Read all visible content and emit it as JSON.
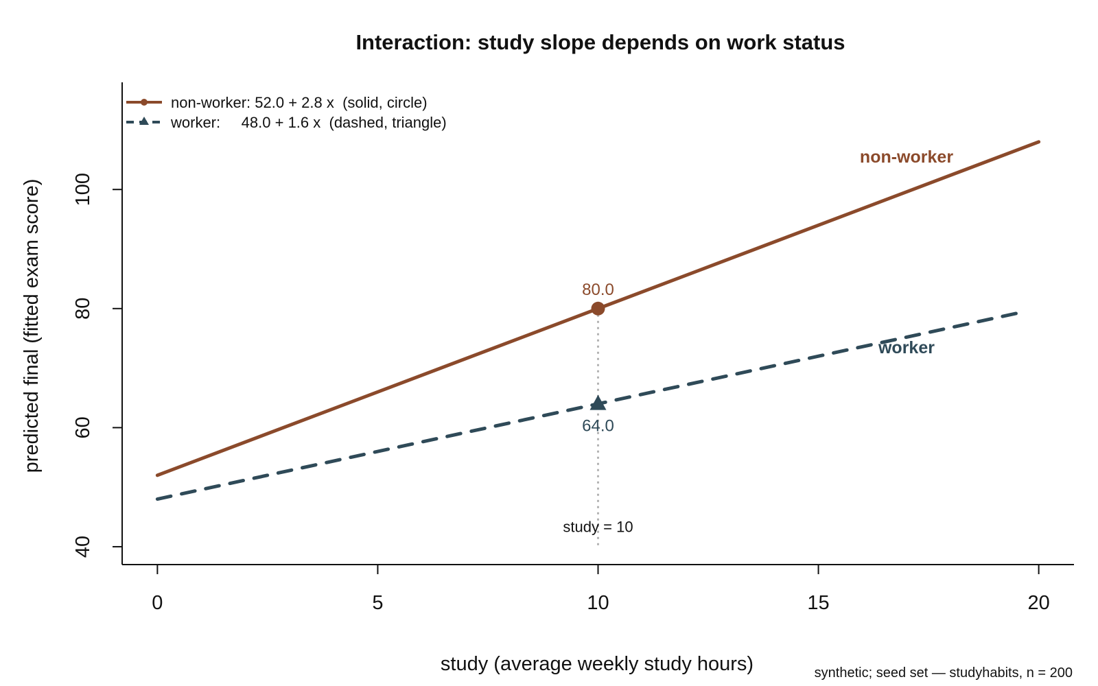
{
  "colors": {
    "non_worker": "#8b4a2b",
    "worker": "#2f4a58",
    "reference": "#b3b3b3",
    "axis": "#111111"
  },
  "chart_data": {
    "type": "line",
    "title": "Interaction: study slope depends on work status",
    "xlabel": "study (average weekly study hours)",
    "ylabel": "predicted final (fitted exam score)",
    "xlim": [
      -0.8,
      20.8
    ],
    "ylim": [
      37,
      118
    ],
    "x_ticks": [
      0,
      5,
      10,
      15,
      20
    ],
    "y_ticks": [
      40,
      60,
      80,
      100
    ],
    "grid": false,
    "legend_position": "top-left",
    "series": [
      {
        "name": "non-worker",
        "legend_label": "non-worker: 52.0 + 2.8 x  (solid, circle)",
        "line_style": "solid",
        "marker": "circle",
        "color": "#8b4a2b",
        "intercept": 52.0,
        "slope": 2.8,
        "x": [
          0,
          20
        ],
        "y": [
          52.0,
          108.0
        ]
      },
      {
        "name": "worker",
        "legend_label": "worker:     48.0 + 1.6 x  (dashed, triangle)",
        "line_style": "dashed",
        "marker": "triangle",
        "color": "#2f4a58",
        "intercept": 48.0,
        "slope": 1.6,
        "x": [
          0,
          19.6
        ],
        "y": [
          48.0,
          79.36
        ]
      }
    ],
    "annotations": {
      "reference_x": 10,
      "reference_label": "study = 10",
      "points": [
        {
          "series": "non-worker",
          "x": 10,
          "y": 80.0,
          "label": "80.0"
        },
        {
          "series": "worker",
          "x": 10,
          "y": 64.0,
          "label": "64.0"
        }
      ],
      "series_labels": [
        {
          "text": "non-worker",
          "x": 17.0,
          "y": 104.5
        },
        {
          "text": "worker",
          "x": 17.0,
          "y": 72.5
        }
      ]
    },
    "footnote": "synthetic; seed set — studyhabits, n = 200"
  }
}
